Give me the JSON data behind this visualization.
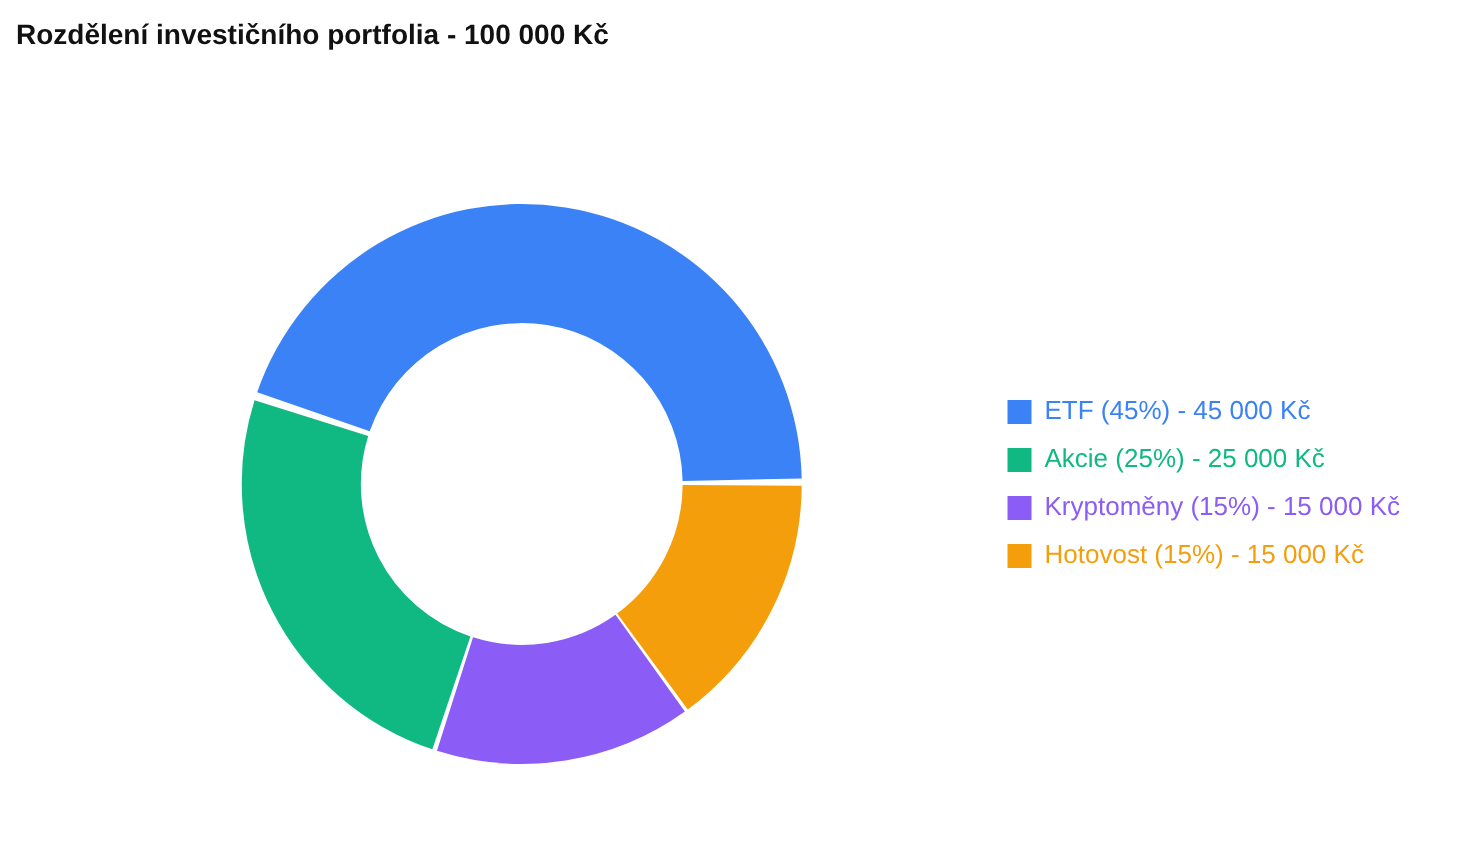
{
  "chart_data": {
    "type": "donut",
    "title": "Rozdělení investičního portfolia - 100 000 Kč",
    "categories": [
      "ETF (45%) - 45 000 Kč",
      "Akcie (25%) - 25 000 Kč",
      "Kryptoměny (15%) - 15 000 Kč",
      "Hotovost (15%) - 15 000 Kč"
    ],
    "values": [
      45,
      25,
      15,
      15
    ],
    "colors": [
      "#3b82f6",
      "#10b981",
      "#8b5cf6",
      "#f59e0b"
    ],
    "legend": "right"
  }
}
